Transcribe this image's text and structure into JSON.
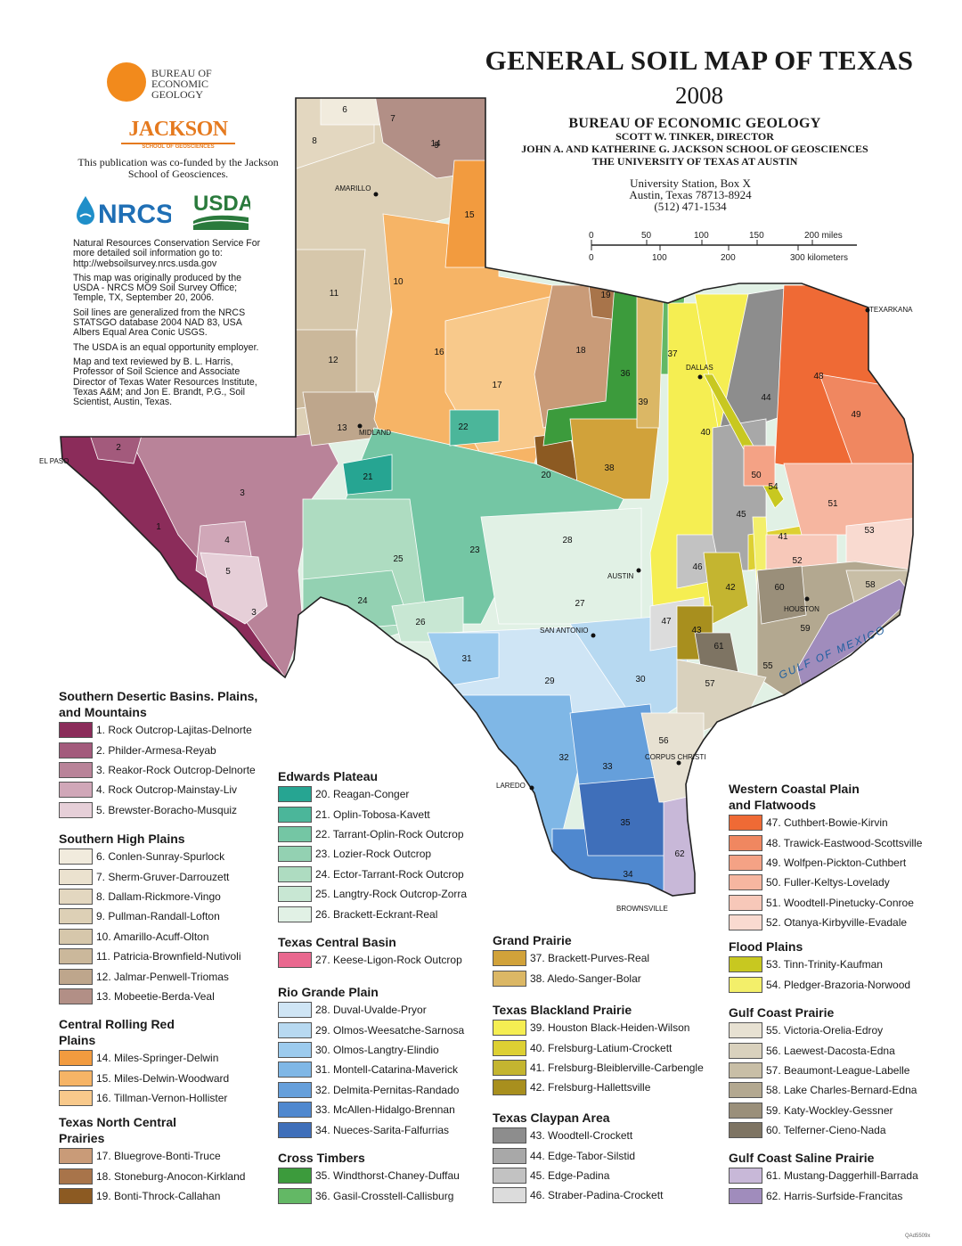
{
  "title": "GENERAL SOIL MAP  OF TEXAS",
  "year": "2008",
  "org": {
    "line1": "BUREAU OF ECONOMIC GEOLOGY",
    "line2": "SCOTT W. TINKER, DIRECTOR",
    "line3": "JOHN A. AND KATHERINE G. JACKSON SCHOOL OF GEOSCIENCES",
    "line4": "THE UNIVERSITY OF TEXAS AT AUSTIN"
  },
  "address": {
    "line1": "University Station, Box X",
    "line2": "Austin, Texas  78713-8924",
    "line3": "(512) 471-1534"
  },
  "logos": {
    "beg": "Bureau of Economic Geology",
    "beg_l1": "BUREAU OF",
    "beg_l2": "ECONOMIC",
    "beg_l3": "GEOLOGY",
    "jackson": "JACKSON",
    "jackson_sub": "SCHOOL OF GEOSCIENCES",
    "cofund": "This publication was co-funded by the Jackson School of Geosciences.",
    "nrcs": "NRCS",
    "usda": "USDA"
  },
  "notes": [
    "Natural Resources Conservation Service For more detailed soil information go to: http://websoilsurvey.nrcs.usda.gov",
    "This map was originally produced by the USDA - NRCS MO9 Soil Survey Office; Temple, TX, September 20, 2006.",
    "Soil lines are generalized from the NRCS STATSGO database 2004 NAD 83, USA Albers Equal Area Conic USGS.",
    "The USDA is an equal opportunity employer.",
    "Map and text reviewed by B. L. Harris, Professor of Soil Science and Associate Director of Texas Water Resources Institute, Texas A&M; and Jon E. Brandt, P.G., Soil Scientist, Austin, Texas."
  ],
  "scale": {
    "miles_ticks": [
      "0",
      "50",
      "100",
      "150",
      "200 miles"
    ],
    "km_ticks": [
      "0",
      "100",
      "200",
      "300 kilometers"
    ]
  },
  "cities": {
    "el_paso": "EL PASO",
    "amarillo": "AMARILLO",
    "midland": "MIDLAND",
    "dallas": "DALLAS",
    "texarkana": "TEXARKANA",
    "austin": "AUSTIN",
    "san_antonio": "SAN ANTONIO",
    "houston": "HOUSTON",
    "corpus_christi": "CORPUS CHRISTI",
    "laredo": "LAREDO",
    "brownsville": "BROWNSVILLE"
  },
  "gulf_label": "GULF   OF   MEXICO",
  "legend": [
    {
      "header": "Southern Desertic Basins. Plains, and Mountains",
      "items": [
        {
          "label": "1. Rock Outcrop-Lajitas-Delnorte",
          "color": "#8b2c5a"
        },
        {
          "label": "2. Philder-Armesa-Reyab",
          "color": "#a35a7c"
        },
        {
          "label": "3. Reakor-Rock Outcrop-Delnorte",
          "color": "#b98399"
        },
        {
          "label": "4. Rock Outcrop-Mainstay-Liv",
          "color": "#d0a7b8"
        },
        {
          "label": "5. Brewster-Boracho-Musquiz",
          "color": "#e6cfd8"
        }
      ]
    },
    {
      "header": "Southern High Plains",
      "items": [
        {
          "label": "6. Conlen-Sunray-Spurlock",
          "color": "#f1ebdd"
        },
        {
          "label": "7. Sherm-Gruver-Darrouzett",
          "color": "#ebe2cf"
        },
        {
          "label": "8. Dallam-Rickmore-Vingo",
          "color": "#e3d7c0"
        },
        {
          "label": "9. Pullman-Randall-Lofton",
          "color": "#ddd0b6"
        },
        {
          "label": "10. Amarillo-Acuff-Olton",
          "color": "#d6c7ab"
        },
        {
          "label": "11. Patricia-Brownfield-Nutivoli",
          "color": "#cbb89b"
        },
        {
          "label": "12. Jalmar-Penwell-Triomas",
          "color": "#bea68c"
        },
        {
          "label": "13. Mobeetie-Berda-Veal",
          "color": "#b28f86"
        }
      ]
    },
    {
      "header": "Central Rolling Red Plains",
      "items": [
        {
          "label": "14. Miles-Springer-Delwin",
          "color": "#f29b3f"
        },
        {
          "label": "15. Miles-Delwin-Woodward",
          "color": "#f6b466"
        },
        {
          "label": "16. Tillman-Vernon-Hollister",
          "color": "#f8c98b"
        }
      ]
    },
    {
      "header": "Texas North Central Prairies",
      "items": [
        {
          "label": "17. Bluegrove-Bonti-Truce",
          "color": "#c99b78"
        },
        {
          "label": "18. Stoneburg-Anocon-Kirkland",
          "color": "#a8744a"
        },
        {
          "label": "19. Bonti-Throck-Callahan",
          "color": "#8c5a22"
        }
      ]
    },
    {
      "header": "Edwards Plateau",
      "items": [
        {
          "label": "20. Reagan-Conger",
          "color": "#26a592"
        },
        {
          "label": "21. Oplin-Tobosa-Kavett",
          "color": "#4bb69a"
        },
        {
          "label": "22. Tarrant-Oplin-Rock Outcrop",
          "color": "#74c6a4"
        },
        {
          "label": "23. Lozier-Rock Outcrop",
          "color": "#93d1b2"
        },
        {
          "label": "24. Ector-Tarrant-Rock Outcrop",
          "color": "#aedcc1"
        },
        {
          "label": "25. Langtry-Rock Outcrop-Zorra",
          "color": "#c8e7d3"
        },
        {
          "label": "26. Brackett-Eckrant-Real",
          "color": "#e1f1e5"
        }
      ]
    },
    {
      "header": "Texas Central Basin",
      "items": [
        {
          "label": "27. Keese-Ligon-Rock Outcrop",
          "color": "#e9688f"
        }
      ]
    },
    {
      "header": "Rio Grande Plain",
      "items": [
        {
          "label": "28. Duval-Uvalde-Pryor",
          "color": "#cfe5f5"
        },
        {
          "label": "29. Olmos-Weesatche-Sarnosa",
          "color": "#b7d9f1"
        },
        {
          "label": "30. Olmos-Langtry-Elindio",
          "color": "#9ccbee"
        },
        {
          "label": "31. Montell-Catarina-Maverick",
          "color": "#7fb7e6"
        },
        {
          "label": "32. Delmita-Pernitas-Randado",
          "color": "#659fdb"
        },
        {
          "label": "33. McAllen-Hidalgo-Brennan",
          "color": "#4f88cf"
        },
        {
          "label": "34. Nueces-Sarita-Falfurrias",
          "color": "#3f6fba"
        }
      ]
    },
    {
      "header": "Cross Timbers",
      "items": [
        {
          "label": "35. Windthorst-Chaney-Duffau",
          "color": "#3c9b3c"
        },
        {
          "label": "36. Gasil-Crosstell-Callisburg",
          "color": "#63b865"
        }
      ]
    },
    {
      "header": "Grand Prairie",
      "items": [
        {
          "label": "37. Brackett-Purves-Real",
          "color": "#d1a23a"
        },
        {
          "label": "38. Aledo-Sanger-Bolar",
          "color": "#dbb765"
        }
      ]
    },
    {
      "header": "Texas Blackland Prairie",
      "items": [
        {
          "label": "39. Houston Black-Heiden-Wilson",
          "color": "#f5ee52"
        },
        {
          "label": "40. Frelsburg-Latium-Crockett",
          "color": "#ddd033"
        },
        {
          "label": "41. Frelsburg-Bleiblerville-Carbengle",
          "color": "#c4b530"
        },
        {
          "label": "42. Frelsburg-Hallettsville",
          "color": "#a88f1e"
        }
      ]
    },
    {
      "header": "Texas Claypan Area",
      "items": [
        {
          "label": "43. Woodtell-Crockett",
          "color": "#8d8d8d"
        },
        {
          "label": "44. Edge-Tabor-Silstid",
          "color": "#a8a8a8"
        },
        {
          "label": "45. Edge-Padina",
          "color": "#c2c2c2"
        },
        {
          "label": "46. Straber-Padina-Crockett",
          "color": "#dcdcdc"
        }
      ]
    },
    {
      "header": "Western Coastal Plain and Flatwoods",
      "items": [
        {
          "label": "47. Cuthbert-Bowie-Kirvin",
          "color": "#ef6a35"
        },
        {
          "label": "48. Trawick-Eastwood-Scottsville",
          "color": "#f08760"
        },
        {
          "label": "49. Wolfpen-Pickton-Cuthbert",
          "color": "#f4a285"
        },
        {
          "label": "50. Fuller-Keltys-Lovelady",
          "color": "#f6b6a0"
        },
        {
          "label": "51. Woodtell-Pinetucky-Conroe",
          "color": "#f7c8b9"
        },
        {
          "label": "52. Otanya-Kirbyville-Evadale",
          "color": "#f9dad0"
        }
      ]
    },
    {
      "header": "Flood Plains",
      "items": [
        {
          "label": "53. Tinn-Trinity-Kaufman",
          "color": "#c8c820"
        },
        {
          "label": "54. Pledger-Brazoria-Norwood",
          "color": "#f3ef6a"
        }
      ]
    },
    {
      "header": "Gulf Coast Prairie",
      "items": [
        {
          "label": "55. Victoria-Orelia-Edroy",
          "color": "#e7e1d2"
        },
        {
          "label": "56. Laewest-Dacosta-Edna",
          "color": "#d9d1bd"
        },
        {
          "label": "57. Beaumont-League-Labelle",
          "color": "#c8bea6"
        },
        {
          "label": "58. Lake Charles-Bernard-Edna",
          "color": "#b3a890"
        },
        {
          "label": "59. Katy-Wockley-Gessner",
          "color": "#9a8f7a"
        },
        {
          "label": "60. Telferner-Cieno-Nada",
          "color": "#7e7463"
        }
      ]
    },
    {
      "header": "Gulf Coast Saline Prairie",
      "items": [
        {
          "label": "61. Mustang-Daggerhill-Barrada",
          "color": "#c8b8d8"
        },
        {
          "label": "62. Harris-Surfside-Francitas",
          "color": "#a08cbc"
        }
      ]
    }
  ],
  "map_region_labels": [
    "1",
    "2",
    "3",
    "3",
    "4",
    "5",
    "6",
    "7",
    "8",
    "9",
    "10",
    "11",
    "12",
    "13",
    "14",
    "15",
    "16",
    "17",
    "18",
    "19",
    "20",
    "21",
    "22",
    "23",
    "24",
    "25",
    "26",
    "27",
    "28",
    "29",
    "30",
    "31",
    "32",
    "33",
    "34",
    "35",
    "36",
    "37",
    "38",
    "39",
    "40",
    "41",
    "42",
    "43",
    "44",
    "45",
    "46",
    "47",
    "48",
    "49",
    "50",
    "51",
    "52",
    "53",
    "54",
    "55",
    "56",
    "57",
    "58",
    "59",
    "60",
    "61",
    "62"
  ],
  "footer_code": "QAd5509x"
}
